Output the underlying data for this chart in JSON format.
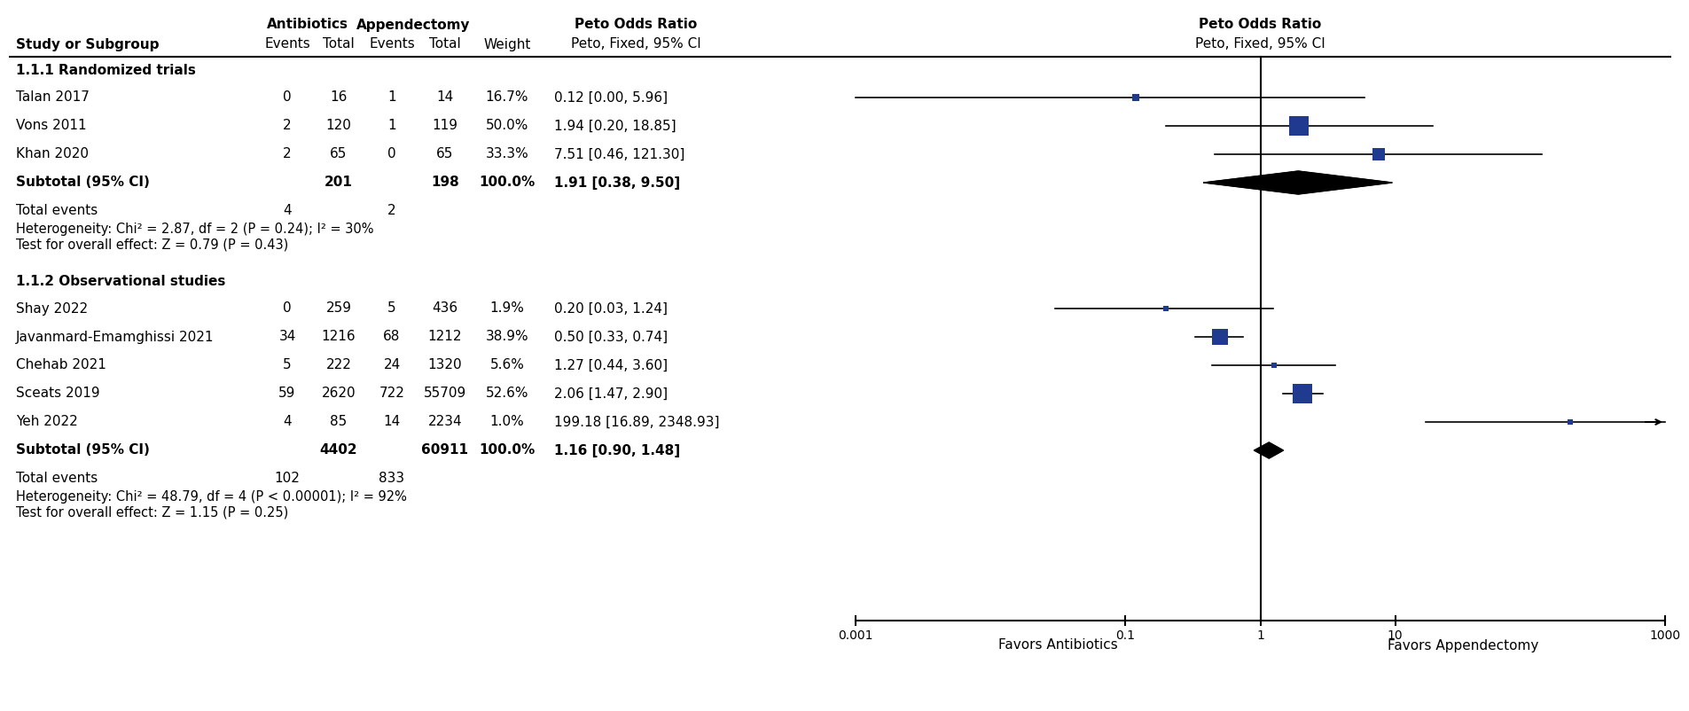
{
  "group1_header": "1.1.1 Randomized trials",
  "group1_studies": [
    {
      "name": "Talan 2017",
      "ab_events": 0,
      "ab_total": 16,
      "ap_events": 1,
      "ap_total": 14,
      "weight": "16.7%",
      "or": 0.12,
      "ci_lo": 0.001,
      "ci_hi": 5.96,
      "or_text": "0.12 [0.00, 5.96]"
    },
    {
      "name": "Vons 2011",
      "ab_events": 2,
      "ab_total": 120,
      "ap_events": 1,
      "ap_total": 119,
      "weight": "50.0%",
      "or": 1.94,
      "ci_lo": 0.2,
      "ci_hi": 18.85,
      "or_text": "1.94 [0.20, 18.85]"
    },
    {
      "name": "Khan 2020",
      "ab_events": 2,
      "ab_total": 65,
      "ap_events": 0,
      "ap_total": 65,
      "weight": "33.3%",
      "or": 7.51,
      "ci_lo": 0.46,
      "ci_hi": 121.3,
      "or_text": "7.51 [0.46, 121.30]"
    }
  ],
  "group1_subtotal": {
    "ab_total": 201,
    "ap_total": 198,
    "weight": "100.0%",
    "or": 1.91,
    "ci_lo": 0.38,
    "ci_hi": 9.5,
    "or_text": "1.91 [0.38, 9.50]",
    "total_events_ab": 4,
    "total_events_ap": 2
  },
  "group1_stats": [
    "Heterogeneity: Chi² = 2.87, df = 2 (P = 0.24); I² = 30%",
    "Test for overall effect: Z = 0.79 (P = 0.43)"
  ],
  "group2_header": "1.1.2 Observational studies",
  "group2_studies": [
    {
      "name": "Shay 2022",
      "ab_events": 0,
      "ab_total": 259,
      "ap_events": 5,
      "ap_total": 436,
      "weight": "1.9%",
      "or": 0.2,
      "ci_lo": 0.03,
      "ci_hi": 1.24,
      "or_text": "0.20 [0.03, 1.24]"
    },
    {
      "name": "Javanmard-Emamghissi 2021",
      "ab_events": 34,
      "ab_total": 1216,
      "ap_events": 68,
      "ap_total": 1212,
      "weight": "38.9%",
      "or": 0.5,
      "ci_lo": 0.33,
      "ci_hi": 0.74,
      "or_text": "0.50 [0.33, 0.74]"
    },
    {
      "name": "Chehab 2021",
      "ab_events": 5,
      "ab_total": 222,
      "ap_events": 24,
      "ap_total": 1320,
      "weight": "5.6%",
      "or": 1.27,
      "ci_lo": 0.44,
      "ci_hi": 3.6,
      "or_text": "1.27 [0.44, 3.60]"
    },
    {
      "name": "Sceats 2019",
      "ab_events": 59,
      "ab_total": 2620,
      "ap_events": 722,
      "ap_total": 55709,
      "weight": "52.6%",
      "or": 2.06,
      "ci_lo": 1.47,
      "ci_hi": 2.9,
      "or_text": "2.06 [1.47, 2.90]"
    },
    {
      "name": "Yeh 2022",
      "ab_events": 4,
      "ab_total": 85,
      "ap_events": 14,
      "ap_total": 2234,
      "weight": "1.0%",
      "or": 199.18,
      "ci_lo": 16.89,
      "ci_hi": 2348.93,
      "or_text": "199.18 [16.89, 2348.93]"
    }
  ],
  "group2_subtotal": {
    "ab_total": 4402,
    "ap_total": 60911,
    "weight": "100.0%",
    "or": 1.16,
    "ci_lo": 0.9,
    "ci_hi": 1.48,
    "or_text": "1.16 [0.90, 1.48]",
    "total_events_ab": 102,
    "total_events_ap": 833
  },
  "group2_stats": [
    "Heterogeneity: Chi² = 48.79, df = 4 (P < 0.00001); I² = 92%",
    "Test for overall effect: Z = 1.15 (P = 0.25)"
  ],
  "axis_ticks": [
    0.001,
    0.1,
    1,
    10,
    1000
  ],
  "axis_tick_labels": [
    "0.001",
    "0.1",
    "1",
    "10",
    "1000"
  ],
  "axis_label_left": "Favors Antibiotics",
  "axis_label_right": "Favors Appendectomy",
  "marker_color": "#1f3a8f",
  "line_color": "#000000",
  "bg_color": "#ffffff"
}
